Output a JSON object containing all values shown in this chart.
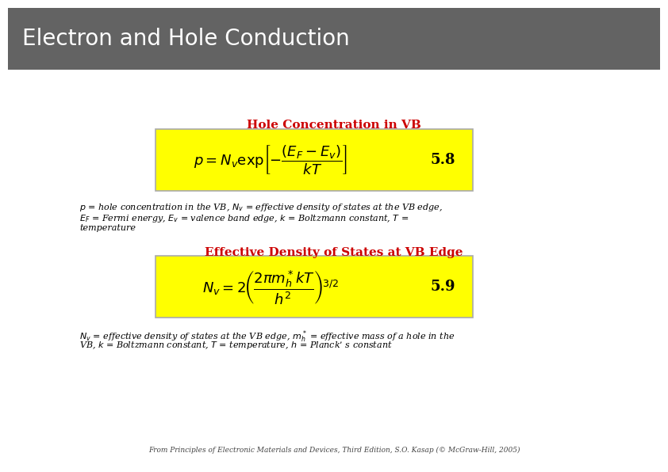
{
  "title": "Electron and Hole Conduction",
  "title_bg_color": "#636363",
  "title_text_color": "#ffffff",
  "title_fontsize": 20,
  "bg_color": "#ffffff",
  "sec1_heading": "Hole Concentration in VB",
  "sec1_heading_color": "#cc0000",
  "sec1_heading_fontsize": 11,
  "sec1_formula": "$p = N_v \\exp\\!\\left[-\\dfrac{(E_F - E_v)}{kT}\\right]$",
  "sec1_eq_num": "5.8",
  "sec1_box_bg": "#ffff00",
  "sec1_box_border": "#aaaaaa",
  "sec1_desc_line1": "$p$ = hole concentration in the VB, $N_v$ = effective density of states at the VB edge,",
  "sec1_desc_line2": "$E_F$ = Fermi energy, $E_v$ = valence band edge, $k$ = Boltzmann constant, $T$ =",
  "sec1_desc_line3": "temperature",
  "sec1_desc_fontsize": 8,
  "sec2_heading": "Effective Density of States at VB Edge",
  "sec2_heading_color": "#cc0000",
  "sec2_heading_fontsize": 11,
  "sec2_formula": "$N_v = 2\\!\\left(\\dfrac{2\\pi m_h^* kT}{h^2}\\right)^{\\!3/2}$",
  "sec2_eq_num": "5.9",
  "sec2_box_bg": "#ffff00",
  "sec2_box_border": "#aaaaaa",
  "sec2_desc_line1": "$N_v$ = effective density of states at the VB edge, $m_h^*$ = effective mass of a hole in the",
  "sec2_desc_line2": "VB, $k$ = Boltzmann constant, $T$ = temperature, $h$ = Planck’ s constant",
  "sec2_desc_fontsize": 8,
  "footer": "From Principles of Electronic Materials and Devices, Third Edition, S.O. Kasap (© McGraw-Hill, 2005)",
  "footer_fontsize": 6.5
}
